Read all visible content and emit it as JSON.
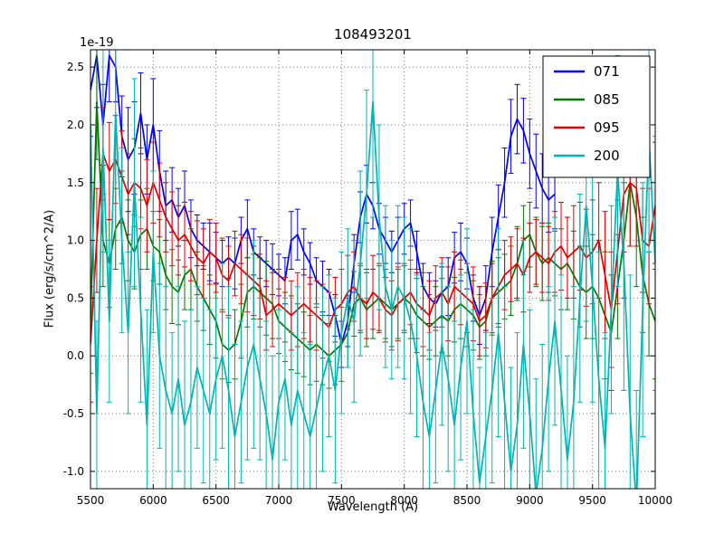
{
  "figure": {
    "title": "108493201",
    "xlabel": "Wavelength (A)",
    "ylabel": "Flux (erg/s/cm^2/A)",
    "offset_text": "1e-19"
  },
  "chart_data": {
    "type": "line",
    "title": "108493201",
    "xlabel": "Wavelength (A)",
    "ylabel": "Flux (erg/s/cm^2/A)",
    "y_offset_label": "1e-19",
    "y_unit": "erg/s/cm^2/A (values scaled by 1e-19)",
    "xlim": [
      5500,
      10000
    ],
    "ylim": [
      -1.15,
      2.65
    ],
    "xticks": [
      5500,
      6000,
      6500,
      7000,
      7500,
      8000,
      8500,
      9000,
      9500,
      10000
    ],
    "xtick_labels": [
      "5500",
      "6000",
      "6500",
      "7000",
      "7500",
      "8000",
      "8500",
      "9000",
      "9500",
      "10000"
    ],
    "yticks": [
      -1.0,
      -0.5,
      0.0,
      0.5,
      1.0,
      1.5,
      2.0,
      2.5
    ],
    "ytick_labels": [
      "-1.0",
      "-0.5",
      "0.0",
      "0.5",
      "1.0",
      "1.5",
      "2.0",
      "2.5"
    ],
    "grid": true,
    "grid_style": "dotted",
    "background": "#ffffff",
    "legend": {
      "position": "upper right",
      "entries": [
        {
          "label": "071",
          "color": "#0000ee"
        },
        {
          "label": "085",
          "color": "#007a00"
        },
        {
          "label": "095",
          "color": "#e00000"
        },
        {
          "label": "200",
          "color": "#00b5b5"
        }
      ]
    },
    "series": [
      {
        "name": "071",
        "color": "#0000ee",
        "x_start": 5500,
        "x_step": 50,
        "values": [
          2.3,
          2.6,
          2.0,
          2.6,
          2.5,
          1.9,
          1.7,
          1.8,
          2.1,
          1.7,
          2.0,
          1.6,
          1.3,
          1.35,
          1.2,
          1.3,
          1.1,
          1.0,
          0.95,
          0.9,
          0.85,
          0.8,
          0.85,
          0.8,
          1.0,
          1.1,
          0.9,
          0.85,
          0.8,
          0.75,
          0.7,
          0.65,
          1.0,
          1.05,
          0.9,
          0.8,
          0.65,
          0.6,
          0.55,
          0.35,
          0.1,
          0.3,
          0.8,
          1.2,
          1.4,
          1.3,
          1.1,
          1.0,
          0.9,
          1.0,
          1.1,
          1.15,
          0.9,
          0.6,
          0.5,
          0.45,
          0.55,
          0.6,
          0.85,
          0.9,
          0.8,
          0.5,
          0.35,
          0.5,
          0.9,
          1.2,
          1.5,
          1.9,
          2.05,
          1.95,
          1.75,
          1.6,
          1.45,
          1.35,
          1.4
        ],
        "errors": [
          0.4,
          0.45,
          0.35,
          0.4,
          0.3,
          0.35,
          0.45,
          0.4,
          0.35,
          0.3,
          0.4,
          0.35,
          0.3,
          0.28,
          0.25,
          0.3,
          0.25,
          0.22,
          0.2,
          0.25,
          0.22,
          0.2,
          0.18,
          0.22,
          0.2,
          0.25,
          0.2,
          0.18,
          0.2,
          0.22,
          0.18,
          0.2,
          0.25,
          0.22,
          0.2,
          0.18,
          0.2,
          0.22,
          0.2,
          0.18,
          0.2,
          0.22,
          0.25,
          0.22,
          0.25,
          0.2,
          0.22,
          0.2,
          0.18,
          0.2,
          0.22,
          0.2,
          0.18,
          0.2,
          0.22,
          0.2,
          0.22,
          0.25,
          0.22,
          0.25,
          0.22,
          0.2,
          0.25,
          0.28,
          0.3,
          0.28,
          0.3,
          0.32,
          0.3,
          0.28,
          0.3,
          0.32,
          0.3,
          0.28,
          0.3
        ]
      },
      {
        "name": "085",
        "color": "#007a00",
        "x_start": 5500,
        "x_step": 50,
        "values": [
          0.3,
          2.2,
          1.0,
          0.8,
          1.1,
          1.2,
          1.0,
          0.9,
          1.05,
          1.1,
          0.95,
          0.9,
          0.7,
          0.6,
          0.55,
          0.7,
          0.75,
          0.6,
          0.5,
          0.4,
          0.3,
          0.1,
          0.05,
          0.1,
          0.3,
          0.55,
          0.6,
          0.55,
          0.5,
          0.45,
          0.3,
          0.25,
          0.2,
          0.15,
          0.1,
          0.05,
          0.1,
          0.05,
          0.0,
          0.05,
          0.1,
          0.2,
          0.45,
          0.5,
          0.4,
          0.45,
          0.5,
          0.45,
          0.4,
          0.45,
          0.5,
          0.45,
          0.35,
          0.3,
          0.25,
          0.3,
          0.35,
          0.3,
          0.4,
          0.45,
          0.4,
          0.35,
          0.25,
          0.3,
          0.5,
          0.55,
          0.6,
          0.65,
          0.8,
          1.0,
          1.05,
          0.9,
          0.8,
          0.85,
          0.8,
          0.75,
          0.8,
          0.7,
          0.6,
          0.55,
          0.6,
          0.5,
          0.35,
          0.2,
          0.6,
          1.0,
          1.5,
          1.2,
          0.7,
          0.45,
          0.3
        ],
        "errors": [
          0.45,
          0.5,
          0.4,
          0.38,
          0.35,
          0.4,
          0.35,
          0.32,
          0.3,
          0.35,
          0.3,
          0.28,
          0.3,
          0.32,
          0.28,
          0.3,
          0.35,
          0.3,
          0.28,
          0.3,
          0.32,
          0.3,
          0.28,
          0.3,
          0.32,
          0.3,
          0.28,
          0.3,
          0.32,
          0.3,
          0.28,
          0.3,
          0.32,
          0.3,
          0.28,
          0.3,
          0.32,
          0.3,
          0.28,
          0.3,
          0.32,
          0.3,
          0.28,
          0.3,
          0.32,
          0.3,
          0.28,
          0.3,
          0.32,
          0.3,
          0.28,
          0.3,
          0.32,
          0.3,
          0.28,
          0.3,
          0.32,
          0.3,
          0.28,
          0.3,
          0.32,
          0.3,
          0.28,
          0.3,
          0.32,
          0.3,
          0.28,
          0.3,
          0.32,
          0.3,
          0.28,
          0.3,
          0.32,
          0.3,
          0.28,
          0.35,
          0.4,
          0.38,
          0.35,
          0.4,
          0.45,
          0.5,
          0.55,
          0.5,
          0.45,
          0.5,
          0.55,
          0.6,
          0.5,
          0.45,
          0.5
        ]
      },
      {
        "name": "095",
        "color": "#e00000",
        "x_start": 5500,
        "x_step": 50,
        "values": [
          0.1,
          1.0,
          1.75,
          1.6,
          1.7,
          1.55,
          1.4,
          1.5,
          1.45,
          1.3,
          1.5,
          1.35,
          1.2,
          1.1,
          1.0,
          1.05,
          0.95,
          0.85,
          0.8,
          0.9,
          0.85,
          0.7,
          0.65,
          0.8,
          0.75,
          0.7,
          0.65,
          0.6,
          0.35,
          0.4,
          0.45,
          0.4,
          0.35,
          0.4,
          0.45,
          0.4,
          0.35,
          0.3,
          0.25,
          0.4,
          0.45,
          0.55,
          0.6,
          0.5,
          0.45,
          0.55,
          0.5,
          0.4,
          0.35,
          0.45,
          0.5,
          0.55,
          0.45,
          0.4,
          0.35,
          0.5,
          0.55,
          0.45,
          0.6,
          0.55,
          0.5,
          0.45,
          0.3,
          0.35,
          0.5,
          0.6,
          0.7,
          0.75,
          0.8,
          0.7,
          0.85,
          0.9,
          0.85,
          0.8,
          0.9,
          0.95,
          0.85,
          0.9,
          0.95,
          0.85,
          0.9,
          1.0,
          0.7,
          0.4,
          0.9,
          1.4,
          1.5,
          1.45,
          1.0,
          0.95,
          1.3
        ],
        "errors": [
          0.5,
          0.45,
          0.4,
          0.42,
          0.38,
          0.4,
          0.35,
          0.38,
          0.35,
          0.4,
          0.35,
          0.32,
          0.3,
          0.32,
          0.3,
          0.28,
          0.3,
          0.32,
          0.3,
          0.28,
          0.3,
          0.32,
          0.3,
          0.28,
          0.3,
          0.32,
          0.3,
          0.28,
          0.3,
          0.32,
          0.3,
          0.28,
          0.3,
          0.32,
          0.3,
          0.28,
          0.3,
          0.32,
          0.3,
          0.28,
          0.3,
          0.32,
          0.3,
          0.28,
          0.3,
          0.32,
          0.3,
          0.28,
          0.3,
          0.32,
          0.3,
          0.28,
          0.3,
          0.32,
          0.3,
          0.28,
          0.3,
          0.32,
          0.3,
          0.28,
          0.3,
          0.32,
          0.3,
          0.28,
          0.3,
          0.32,
          0.3,
          0.28,
          0.3,
          0.32,
          0.3,
          0.28,
          0.3,
          0.32,
          0.35,
          0.38,
          0.35,
          0.4,
          0.38,
          0.42,
          0.45,
          0.5,
          0.55,
          0.5,
          0.45,
          0.5,
          0.55,
          0.5,
          0.45,
          0.5,
          0.55
        ]
      },
      {
        "name": "200",
        "color": "#00b5b5",
        "x_start": 5500,
        "x_step": 50,
        "values": [
          2.0,
          -0.5,
          1.8,
          0.3,
          2.1,
          1.0,
          0.2,
          1.5,
          0.4,
          -0.6,
          0.9,
          0.0,
          -0.3,
          -0.5,
          -0.2,
          -0.6,
          -0.4,
          -0.1,
          -0.3,
          -0.5,
          -0.2,
          0.0,
          -0.3,
          -0.7,
          -0.4,
          -0.1,
          0.1,
          -0.2,
          -0.5,
          -0.9,
          -0.4,
          -0.2,
          -0.6,
          -0.3,
          -0.5,
          -0.7,
          -0.45,
          -0.2,
          0.0,
          -0.3,
          0.2,
          0.5,
          0.3,
          0.8,
          1.4,
          2.2,
          1.2,
          0.6,
          0.4,
          0.6,
          0.5,
          0.3,
          0.0,
          -0.4,
          -0.7,
          -0.3,
          0.1,
          -0.2,
          -0.6,
          -0.1,
          0.3,
          -0.5,
          -1.1,
          -0.7,
          -0.3,
          0.2,
          -0.4,
          -1.0,
          -0.6,
          0.1,
          -0.5,
          -1.2,
          -0.8,
          -0.2,
          0.3,
          -0.3,
          -0.9,
          -0.4,
          0.5,
          1.3,
          0.6,
          -0.2,
          -0.8,
          0.4,
          1.6,
          0.8,
          -0.5,
          -1.3,
          0.4,
          1.9,
          0.8
        ],
        "errors": [
          1.0,
          0.8,
          0.9,
          0.7,
          1.1,
          0.8,
          0.7,
          0.9,
          0.8,
          1.0,
          0.7,
          0.8,
          0.9,
          0.7,
          0.8,
          0.9,
          0.8,
          0.7,
          0.8,
          0.9,
          0.7,
          0.8,
          0.9,
          0.8,
          0.7,
          0.8,
          0.9,
          0.7,
          0.8,
          0.9,
          0.8,
          0.7,
          0.8,
          0.9,
          0.7,
          0.8,
          0.9,
          0.8,
          0.7,
          0.8,
          0.7,
          0.6,
          0.7,
          0.8,
          0.9,
          1.0,
          0.8,
          0.7,
          0.6,
          0.7,
          0.7,
          0.8,
          0.7,
          0.8,
          0.9,
          0.8,
          0.7,
          0.8,
          0.9,
          0.8,
          0.8,
          0.9,
          1.0,
          0.9,
          0.8,
          0.9,
          1.0,
          0.9,
          0.8,
          0.9,
          0.9,
          1.0,
          0.9,
          0.8,
          0.9,
          1.0,
          0.9,
          1.0,
          0.9,
          1.0,
          1.0,
          1.1,
          1.0,
          0.9,
          1.0,
          1.1,
          1.2,
          1.0,
          1.1,
          1.0,
          1.1
        ]
      }
    ]
  }
}
